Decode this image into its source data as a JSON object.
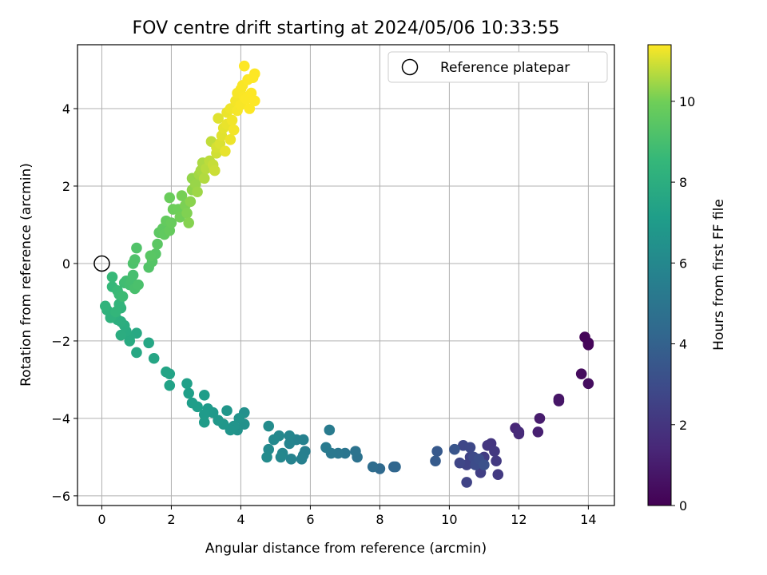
{
  "chart_data": {
    "type": "scatter",
    "title": "FOV centre drift starting at 2024/05/06 10:33:55",
    "xlabel": "Angular distance from reference (arcmin)",
    "ylabel": "Rotation from reference (arcmin)",
    "xlim": [
      -0.7,
      14.75
    ],
    "ylim": [
      -6.25,
      5.65
    ],
    "xticks": [
      0,
      2,
      4,
      6,
      8,
      10,
      12,
      14
    ],
    "yticks": [
      -6,
      -4,
      -2,
      0,
      2,
      4
    ],
    "grid": true,
    "colormap": "viridis",
    "colorbar": {
      "label": "Hours from first FF file",
      "range": [
        0,
        11.4
      ],
      "ticks": [
        0,
        2,
        4,
        6,
        8,
        10
      ]
    },
    "legend": {
      "location": "upper right",
      "entries": [
        "Reference platepar"
      ]
    },
    "reference_point": {
      "x": 0,
      "y": 0
    },
    "points": [
      [
        13.9,
        -1.9,
        0.1
      ],
      [
        14.0,
        -2.05,
        0.15
      ],
      [
        14.0,
        -2.1,
        0.2
      ],
      [
        13.8,
        -2.85,
        0.35
      ],
      [
        14.0,
        -3.1,
        0.45
      ],
      [
        13.15,
        -3.5,
        0.7
      ],
      [
        13.15,
        -3.55,
        0.75
      ],
      [
        12.6,
        -4.0,
        1.0
      ],
      [
        12.55,
        -4.35,
        1.15
      ],
      [
        11.9,
        -4.25,
        1.4
      ],
      [
        12.0,
        -4.4,
        1.5
      ],
      [
        12.0,
        -4.35,
        1.55
      ],
      [
        11.2,
        -4.65,
        2.0
      ],
      [
        11.1,
        -4.7,
        2.05
      ],
      [
        11.3,
        -4.85,
        2.1
      ],
      [
        11.35,
        -5.1,
        2.15
      ],
      [
        11.4,
        -5.45,
        2.2
      ],
      [
        11.0,
        -5.0,
        2.3
      ],
      [
        10.9,
        -5.2,
        2.35
      ],
      [
        10.9,
        -5.4,
        2.4
      ],
      [
        10.6,
        -5.0,
        2.5
      ],
      [
        10.5,
        -5.2,
        2.55
      ],
      [
        10.5,
        -5.65,
        2.6
      ],
      [
        10.3,
        -5.15,
        2.7
      ],
      [
        10.4,
        -4.7,
        2.75
      ],
      [
        10.6,
        -4.75,
        2.8
      ],
      [
        10.7,
        -5.0,
        2.9
      ],
      [
        10.75,
        -5.2,
        3.0
      ],
      [
        10.85,
        -5.05,
        3.1
      ],
      [
        11.0,
        -5.2,
        3.2
      ],
      [
        10.15,
        -4.8,
        3.4
      ],
      [
        9.65,
        -4.85,
        3.6
      ],
      [
        9.6,
        -5.1,
        3.7
      ],
      [
        8.4,
        -5.25,
        4.2
      ],
      [
        8.45,
        -5.25,
        4.25
      ],
      [
        8.0,
        -5.3,
        4.4
      ],
      [
        7.8,
        -5.25,
        4.55
      ],
      [
        7.35,
        -5.0,
        4.8
      ],
      [
        7.3,
        -4.85,
        4.9
      ],
      [
        7.0,
        -4.9,
        5.0
      ],
      [
        6.8,
        -4.9,
        5.1
      ],
      [
        6.6,
        -4.9,
        5.15
      ],
      [
        6.45,
        -4.75,
        5.25
      ],
      [
        6.55,
        -4.3,
        5.3
      ],
      [
        5.85,
        -4.85,
        5.5
      ],
      [
        5.8,
        -4.95,
        5.55
      ],
      [
        5.75,
        -5.05,
        5.6
      ],
      [
        5.8,
        -4.55,
        5.65
      ],
      [
        5.6,
        -4.55,
        5.7
      ],
      [
        5.45,
        -5.05,
        5.75
      ],
      [
        5.4,
        -4.65,
        5.8
      ],
      [
        5.4,
        -4.45,
        5.85
      ],
      [
        5.2,
        -4.9,
        5.9
      ],
      [
        5.15,
        -5.0,
        5.95
      ],
      [
        5.1,
        -4.45,
        6.0
      ],
      [
        4.95,
        -4.55,
        6.05
      ],
      [
        4.8,
        -4.8,
        6.1
      ],
      [
        4.75,
        -5.0,
        6.15
      ],
      [
        4.8,
        -4.2,
        6.2
      ],
      [
        4.1,
        -3.85,
        6.4
      ],
      [
        4.1,
        -4.15,
        6.45
      ],
      [
        3.9,
        -4.3,
        6.5
      ],
      [
        3.95,
        -4.0,
        6.55
      ],
      [
        3.8,
        -4.2,
        6.6
      ],
      [
        3.7,
        -4.3,
        6.65
      ],
      [
        3.6,
        -3.8,
        6.7
      ],
      [
        3.5,
        -4.15,
        6.75
      ],
      [
        3.35,
        -4.05,
        6.8
      ],
      [
        3.2,
        -3.85,
        6.85
      ],
      [
        3.05,
        -3.75,
        6.9
      ],
      [
        2.95,
        -3.9,
        6.95
      ],
      [
        2.95,
        -4.1,
        7.0
      ],
      [
        2.95,
        -3.4,
        7.05
      ],
      [
        2.75,
        -3.7,
        7.1
      ],
      [
        2.6,
        -3.6,
        7.15
      ],
      [
        2.5,
        -3.35,
        7.2
      ],
      [
        2.45,
        -3.1,
        7.25
      ],
      [
        1.95,
        -3.15,
        7.35
      ],
      [
        1.95,
        -2.85,
        7.4
      ],
      [
        1.85,
        -2.8,
        7.45
      ],
      [
        1.5,
        -2.45,
        7.55
      ],
      [
        1.35,
        -2.05,
        7.6
      ],
      [
        1.0,
        -2.3,
        7.65
      ],
      [
        1.0,
        -1.8,
        7.7
      ],
      [
        0.8,
        -1.9,
        7.75
      ],
      [
        0.8,
        -2.0,
        7.8
      ],
      [
        0.7,
        -1.75,
        7.85
      ],
      [
        0.65,
        -1.6,
        7.9
      ],
      [
        0.55,
        -1.85,
        7.95
      ],
      [
        0.55,
        -1.5,
        8.0
      ],
      [
        0.45,
        -1.45,
        8.05
      ],
      [
        0.35,
        -1.35,
        8.1
      ],
      [
        0.3,
        -1.3,
        8.15
      ],
      [
        0.25,
        -1.4,
        8.2
      ],
      [
        0.15,
        -1.2,
        8.25
      ],
      [
        0.1,
        -1.1,
        8.3
      ],
      [
        0.55,
        -1.15,
        8.35
      ],
      [
        0.5,
        -1.05,
        8.4
      ],
      [
        0.4,
        -1.25,
        8.45
      ],
      [
        0.3,
        -0.6,
        8.55
      ],
      [
        0.3,
        -0.35,
        8.6
      ],
      [
        0.45,
        -0.7,
        8.65
      ],
      [
        0.5,
        -0.8,
        8.7
      ],
      [
        0.6,
        -0.85,
        8.75
      ],
      [
        0.65,
        -0.5,
        8.8
      ],
      [
        0.7,
        -0.45,
        8.85
      ],
      [
        0.8,
        -0.55,
        8.9
      ],
      [
        0.85,
        -0.45,
        8.95
      ],
      [
        0.9,
        -0.3,
        9.0
      ],
      [
        0.95,
        -0.65,
        9.05
      ],
      [
        1.05,
        -0.55,
        9.1
      ],
      [
        0.9,
        0.0,
        9.15
      ],
      [
        0.95,
        0.1,
        9.2
      ],
      [
        1.0,
        0.4,
        9.25
      ],
      [
        1.35,
        -0.1,
        9.3
      ],
      [
        1.45,
        0.05,
        9.35
      ],
      [
        1.55,
        0.25,
        9.4
      ],
      [
        1.4,
        0.2,
        9.45
      ],
      [
        1.6,
        0.5,
        9.5
      ],
      [
        1.65,
        0.8,
        9.55
      ],
      [
        1.75,
        0.9,
        9.6
      ],
      [
        1.8,
        0.75,
        9.65
      ],
      [
        1.85,
        1.1,
        9.7
      ],
      [
        1.95,
        0.85,
        9.75
      ],
      [
        2.0,
        1.05,
        9.8
      ],
      [
        1.95,
        1.7,
        9.85
      ],
      [
        2.05,
        1.4,
        9.9
      ],
      [
        2.2,
        1.4,
        9.95
      ],
      [
        2.25,
        1.2,
        10.0
      ],
      [
        2.3,
        1.75,
        10.05
      ],
      [
        2.4,
        1.5,
        10.1
      ],
      [
        2.45,
        1.3,
        10.15
      ],
      [
        2.5,
        1.05,
        10.2
      ],
      [
        2.55,
        1.6,
        10.25
      ],
      [
        2.6,
        1.9,
        10.3
      ],
      [
        2.6,
        2.2,
        10.35
      ],
      [
        2.7,
        2.05,
        10.4
      ],
      [
        2.75,
        1.85,
        10.45
      ],
      [
        2.8,
        2.3,
        10.5
      ],
      [
        2.85,
        2.4,
        10.55
      ],
      [
        2.9,
        2.6,
        10.6
      ],
      [
        2.95,
        2.2,
        10.65
      ],
      [
        3.0,
        2.45,
        10.7
      ],
      [
        3.1,
        2.65,
        10.75
      ],
      [
        3.15,
        3.15,
        10.8
      ],
      [
        3.2,
        2.55,
        10.85
      ],
      [
        3.25,
        2.4,
        10.9
      ],
      [
        3.3,
        2.85,
        10.95
      ],
      [
        3.3,
        3.0,
        11.0
      ],
      [
        3.4,
        3.1,
        11.05
      ],
      [
        3.35,
        3.75,
        11.1
      ],
      [
        3.45,
        3.3,
        11.12
      ],
      [
        3.5,
        3.5,
        11.15
      ],
      [
        3.55,
        2.9,
        11.18
      ],
      [
        3.6,
        3.6,
        11.2
      ],
      [
        3.6,
        3.9,
        11.22
      ],
      [
        3.7,
        3.2,
        11.24
      ],
      [
        3.7,
        4.0,
        11.26
      ],
      [
        3.75,
        3.7,
        11.28
      ],
      [
        3.8,
        3.45,
        11.3
      ],
      [
        3.85,
        4.2,
        11.31
      ],
      [
        3.9,
        3.95,
        11.32
      ],
      [
        3.9,
        4.4,
        11.33
      ],
      [
        4.0,
        4.5,
        11.34
      ],
      [
        4.0,
        4.1,
        11.35
      ],
      [
        4.05,
        4.6,
        11.36
      ],
      [
        4.1,
        4.3,
        11.37
      ],
      [
        4.15,
        4.25,
        11.38
      ],
      [
        4.2,
        4.75,
        11.38
      ],
      [
        4.25,
        4.0,
        11.39
      ],
      [
        4.3,
        4.4,
        11.39
      ],
      [
        4.35,
        4.8,
        11.4
      ],
      [
        4.4,
        4.2,
        11.4
      ],
      [
        4.1,
        5.1,
        11.4
      ],
      [
        4.4,
        4.9,
        11.4
      ]
    ]
  }
}
